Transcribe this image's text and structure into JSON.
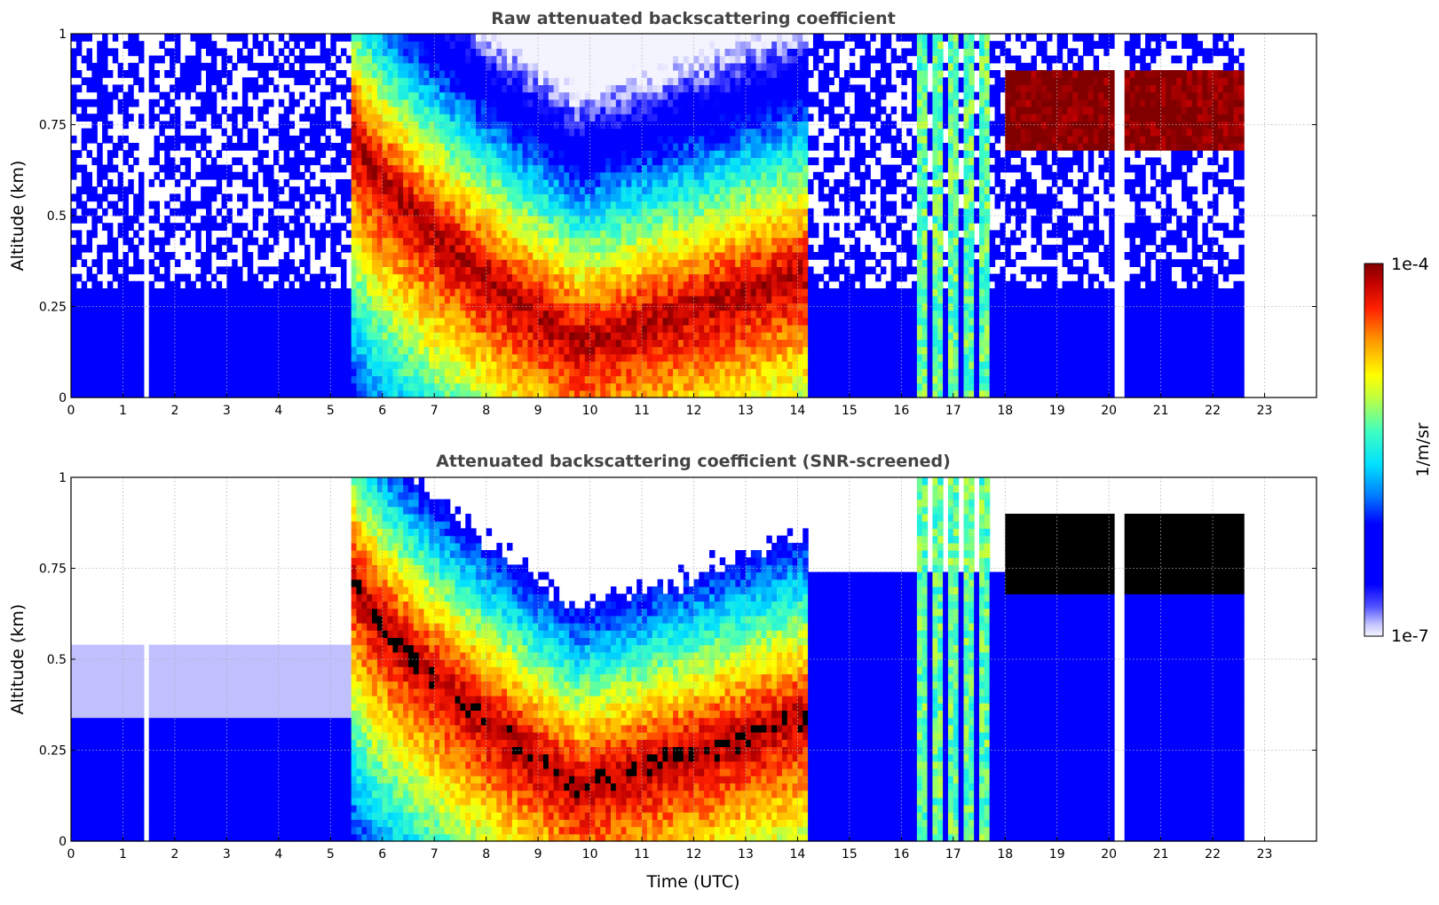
{
  "chart_data": [
    {
      "type": "heatmap",
      "title": "Raw attenuated backscattering coefficient",
      "xlabel": "",
      "ylabel": "Altitude (km)",
      "xlim": [
        0,
        24
      ],
      "ylim": [
        0,
        1
      ],
      "x_ticks": [
        0,
        1,
        2,
        3,
        4,
        5,
        6,
        7,
        8,
        9,
        10,
        11,
        12,
        13,
        14,
        15,
        16,
        17,
        18,
        19,
        20,
        21,
        22,
        23
      ],
      "y_ticks": [
        0,
        0.25,
        0.5,
        0.75,
        1
      ],
      "y_tick_labels": [
        "0",
        "0.25",
        "0.5",
        "0.75",
        "1"
      ],
      "grid": true,
      "data_end_hour": 22.65,
      "gaps_hours": [
        1.45,
        20.2
      ],
      "features": [
        {
          "kind": "clear-air noise",
          "x_range": [
            0,
            5.4
          ],
          "altitude_range_km": [
            0,
            1
          ],
          "log10_value": -6.6
        },
        {
          "kind": "aerosol boundary layer",
          "x_range": [
            5.4,
            14.2
          ],
          "peak_altitude_km_start": 0.75,
          "peak_altitude_km_min": 0.15,
          "peak_altitude_km_end": 0.35,
          "log10_value_peak": -4.1
        },
        {
          "kind": "noisy clear air",
          "x_range": [
            14.2,
            16.0
          ],
          "altitude_range_km": [
            0,
            1
          ],
          "log10_value": -6.5
        },
        {
          "kind": "precipitation streaks",
          "x_hours": [
            16.4,
            16.7,
            17.0,
            17.3,
            17.6
          ],
          "log10_value": -5.3
        },
        {
          "kind": "cloud layer",
          "x_range": [
            18.0,
            22.65
          ],
          "altitude_range_km": [
            0.68,
            0.9
          ],
          "log10_value": -4.0
        }
      ]
    },
    {
      "type": "heatmap",
      "title": "Attenuated backscattering coefficient (SNR-screened)",
      "xlabel": "Time (UTC)",
      "ylabel": "Altitude (km)",
      "xlim": [
        0,
        24
      ],
      "ylim": [
        0,
        1
      ],
      "x_ticks": [
        0,
        1,
        2,
        3,
        4,
        5,
        6,
        7,
        8,
        9,
        10,
        11,
        12,
        13,
        14,
        15,
        16,
        17,
        18,
        19,
        20,
        21,
        22,
        23
      ],
      "y_ticks": [
        0,
        0.25,
        0.5,
        0.75,
        1
      ],
      "y_tick_labels": [
        "0",
        "0.25",
        "0.5",
        "0.75",
        "1"
      ],
      "grid": true,
      "data_end_hour": 22.65,
      "gaps_hours": [
        1.45,
        20.2
      ],
      "features": [
        {
          "kind": "screened low-signal",
          "x_range": [
            0,
            5.4
          ],
          "altitude_range_km": [
            0,
            0.55
          ],
          "log10_value": -6.6
        },
        {
          "kind": "aerosol boundary layer",
          "x_range": [
            5.4,
            14.2
          ],
          "peak_altitude_km_start": 0.75,
          "peak_altitude_km_min": 0.15,
          "peak_altitude_km_end": 0.35,
          "log10_value_peak": -4.1
        },
        {
          "kind": "precipitation streaks",
          "x_hours": [
            16.4,
            16.7,
            17.0,
            17.3,
            17.6
          ],
          "log10_value": -5.3
        },
        {
          "kind": "cloud layer (saturated, black)",
          "x_range": [
            18.0,
            22.65
          ],
          "altitude_range_km": [
            0.68,
            0.9
          ],
          "log10_value": -3.9
        }
      ]
    }
  ],
  "colorbar": {
    "max_label": "1e-4",
    "min_label": "1e-7",
    "label": "1/m/sr",
    "log10_min": -7,
    "log10_max": -4,
    "colormap": "jet"
  }
}
